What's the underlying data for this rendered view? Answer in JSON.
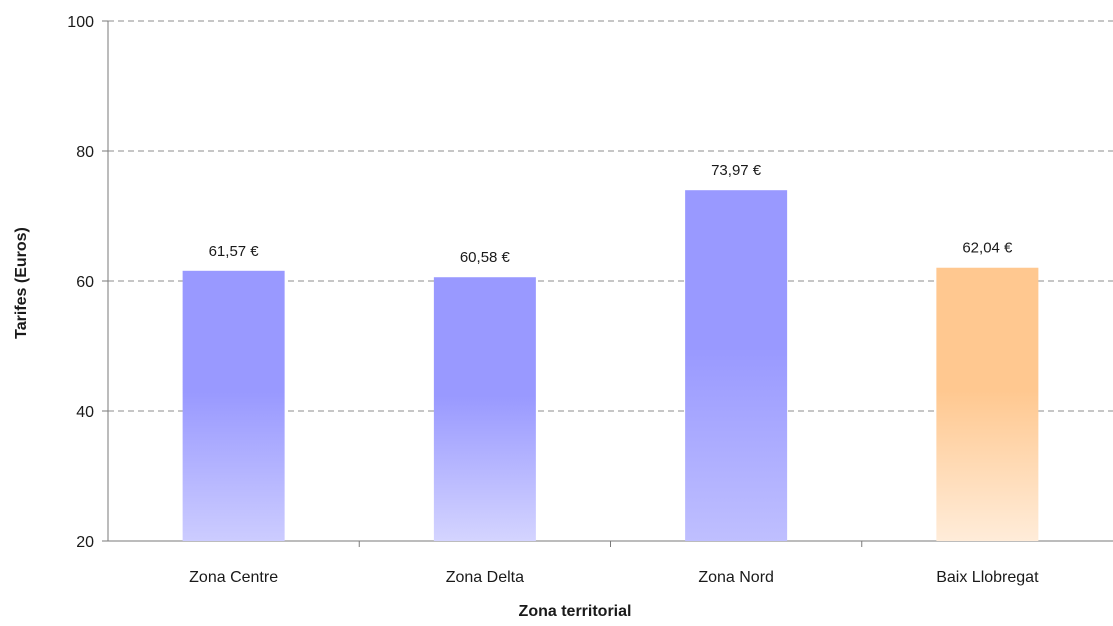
{
  "chart_data": {
    "type": "bar",
    "categories": [
      "Zona Centre",
      "Zona Delta",
      "Zona Nord",
      "Baix Llobregat"
    ],
    "values": [
      61.57,
      60.58,
      73.97,
      62.04
    ],
    "data_labels": [
      "61,57 €",
      "60,58 €",
      "73,97 €",
      "62,04 €"
    ],
    "xlabel": "Zona territorial",
    "ylabel": "Tarifes (Euros)",
    "ylim": [
      20,
      100
    ],
    "yticks": [
      20,
      40,
      60,
      80,
      100
    ],
    "grid": "horizontal-dashed",
    "bar_colors": [
      {
        "top": "#9999ff",
        "bottom": "#ccccff"
      },
      {
        "top": "#9999ff",
        "bottom": "#d4d4ff"
      },
      {
        "top": "#9999ff",
        "bottom": "#bfbfff"
      },
      {
        "top": "#ffc890",
        "bottom": "#ffecd9"
      }
    ]
  }
}
